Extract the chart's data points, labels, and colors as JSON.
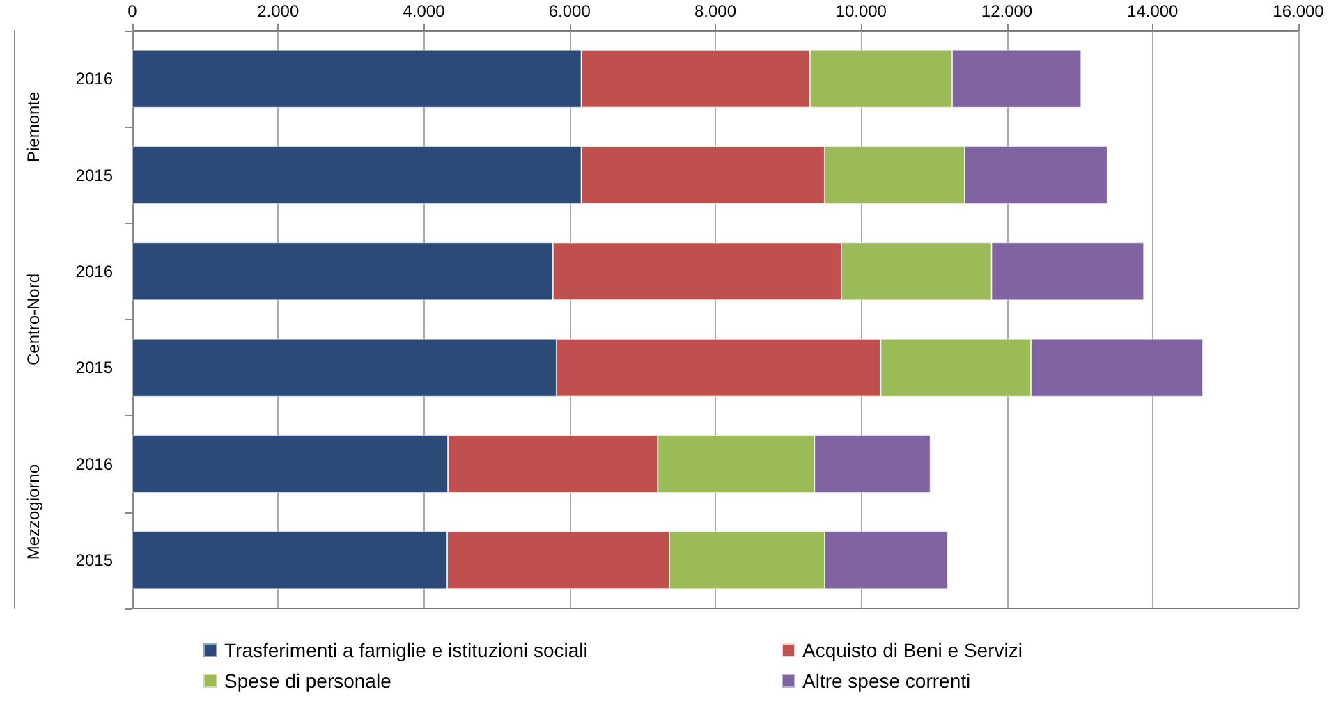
{
  "chart_data": {
    "type": "bar",
    "orientation": "horizontal",
    "stacked": true,
    "categories": [
      "2016",
      "2015",
      "2016",
      "2015",
      "2016",
      "2015"
    ],
    "annotations": [
      "Piemonte",
      "Centro-Nord",
      "Mezzogiorno"
    ],
    "series": [
      {
        "name": "Trasferimenti a famiglie e istituzioni sociali",
        "color": "#2c4a77",
        "values": [
          6160,
          6160,
          5770,
          5820,
          4330,
          4320
        ]
      },
      {
        "name": "Acquisto di Beni e Servizi",
        "color": "#c0504d",
        "values": [
          3140,
          3340,
          3960,
          4450,
          2880,
          3050
        ]
      },
      {
        "name": "Spese di personale",
        "color": "#9bbb59",
        "values": [
          1950,
          1920,
          2060,
          2060,
          2150,
          2130
        ]
      },
      {
        "name": "Altre spese correnti",
        "color": "#8064a2",
        "values": [
          1770,
          1960,
          2090,
          2360,
          1590,
          1690
        ]
      }
    ],
    "xlim": [
      0,
      16000
    ],
    "xticks": [
      0,
      {
        "value": 2000,
        "label": "2.000"
      },
      {
        "value": 4000,
        "label": "4.000"
      },
      {
        "value": 6000,
        "label": "6.000"
      },
      {
        "value": 8000,
        "label": "8.000"
      },
      {
        "value": 10000,
        "label": "10.000"
      },
      {
        "value": 12000,
        "label": "12.000"
      },
      {
        "value": 14000,
        "label": "14.000"
      },
      {
        "value": 16000,
        "label": "16.000"
      }
    ],
    "grid": "x",
    "legend": "bottom"
  }
}
